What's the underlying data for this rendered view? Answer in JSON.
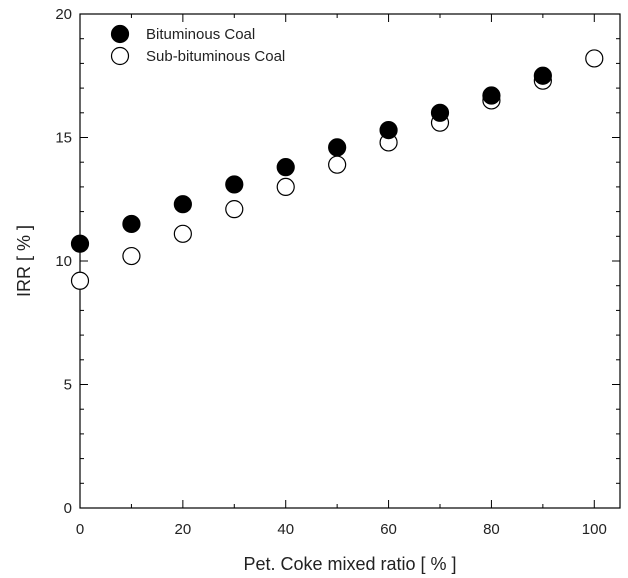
{
  "chart_data": {
    "type": "scatter",
    "title": "",
    "xlabel": "Pet. Coke mixed ratio [ % ]",
    "ylabel": "IRR [ % ]",
    "xlim": [
      0,
      105
    ],
    "ylim": [
      0,
      20
    ],
    "x_ticks": [
      0,
      20,
      40,
      60,
      80,
      100
    ],
    "y_ticks": [
      0,
      5,
      10,
      15,
      20
    ],
    "grid": false,
    "legend_position": "top-left",
    "series": [
      {
        "name": "Bituminous Coal",
        "marker": "filled-circle",
        "color": "#000000",
        "x": [
          0,
          10,
          20,
          30,
          40,
          50,
          60,
          70,
          80,
          90
        ],
        "y": [
          10.7,
          11.5,
          12.3,
          13.1,
          13.8,
          14.6,
          15.3,
          16.0,
          16.7,
          17.5
        ]
      },
      {
        "name": "Sub-bituminous Coal",
        "marker": "open-circle",
        "color": "#000000",
        "x": [
          0,
          10,
          20,
          30,
          40,
          50,
          60,
          70,
          80,
          90,
          100
        ],
        "y": [
          9.2,
          10.2,
          11.1,
          12.1,
          13.0,
          13.9,
          14.8,
          15.6,
          16.5,
          17.3,
          18.2
        ]
      }
    ]
  }
}
